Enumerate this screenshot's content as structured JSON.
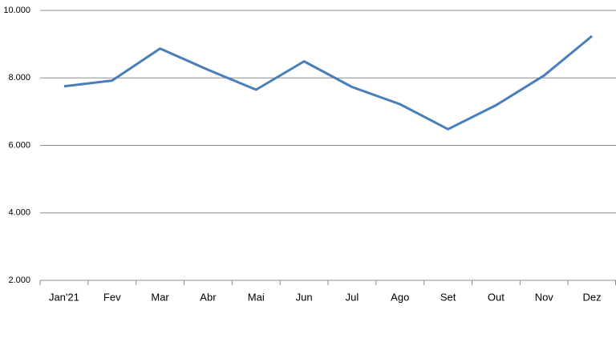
{
  "chart_data": {
    "type": "line",
    "categories": [
      "Jan'21",
      "Fev",
      "Mar",
      "Abr",
      "Mai",
      "Jun",
      "Jul",
      "Ago",
      "Set",
      "Out",
      "Nov",
      "Dez"
    ],
    "series": [
      {
        "color": "#4a7ebb",
        "values": [
          7750,
          7920,
          8870,
          8240,
          7650,
          8490,
          7730,
          7220,
          6480,
          7190,
          8070,
          9240
        ]
      }
    ],
    "ylim": [
      2000,
      10000
    ],
    "yticks": [
      {
        "value": 2000,
        "label": "2.000"
      },
      {
        "value": 4000,
        "label": "4.000"
      },
      {
        "value": 6000,
        "label": "6.000"
      },
      {
        "value": 8000,
        "label": "8.000"
      },
      {
        "value": 10000,
        "label": "10.000"
      }
    ],
    "grid": true
  }
}
